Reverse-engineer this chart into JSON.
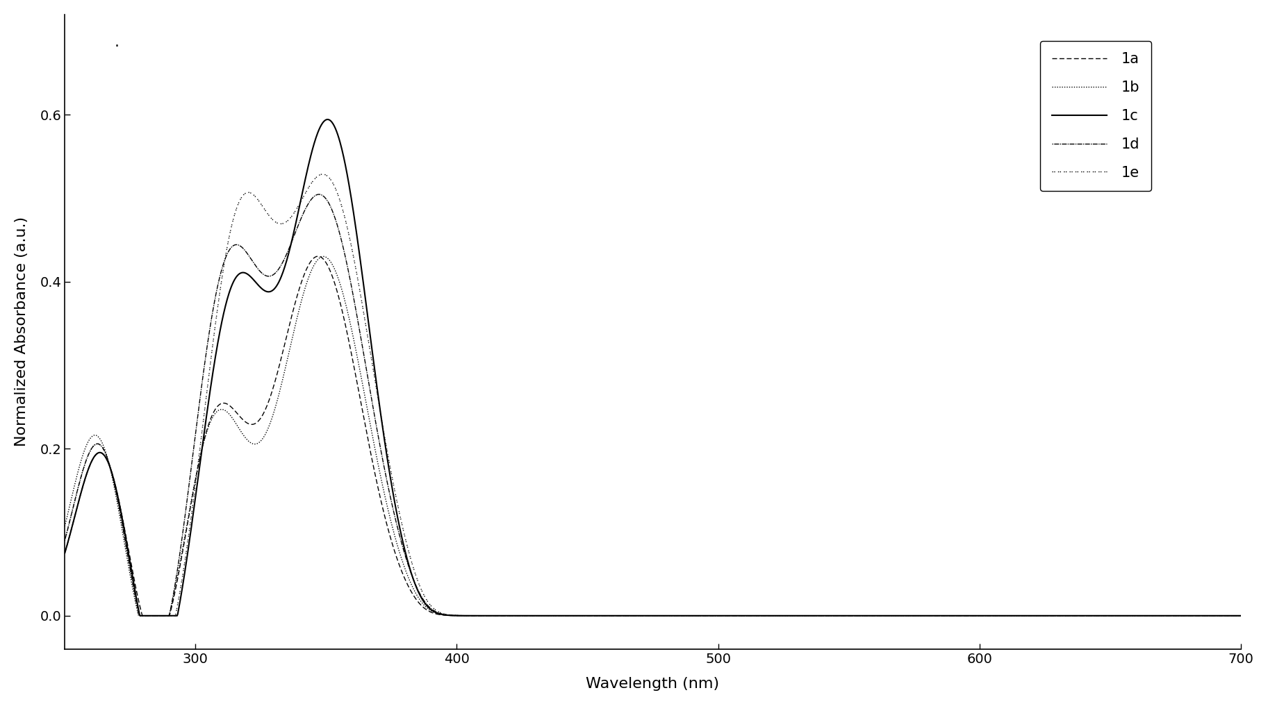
{
  "xlabel": "Wavelength (nm)",
  "ylabel": "Normalized Absorbance (a.u.)",
  "xlim": [
    250,
    700
  ],
  "ylim": [
    -0.04,
    0.72
  ],
  "xticks": [
    300,
    400,
    500,
    600,
    700
  ],
  "yticks": [
    0.0,
    0.2,
    0.4,
    0.6
  ],
  "legend_labels": [
    "1a",
    "1b",
    "1c",
    "1d",
    "1e"
  ],
  "background_color": "#ffffff",
  "label_fontsize": 16,
  "tick_fontsize": 14,
  "legend_fontsize": 15
}
